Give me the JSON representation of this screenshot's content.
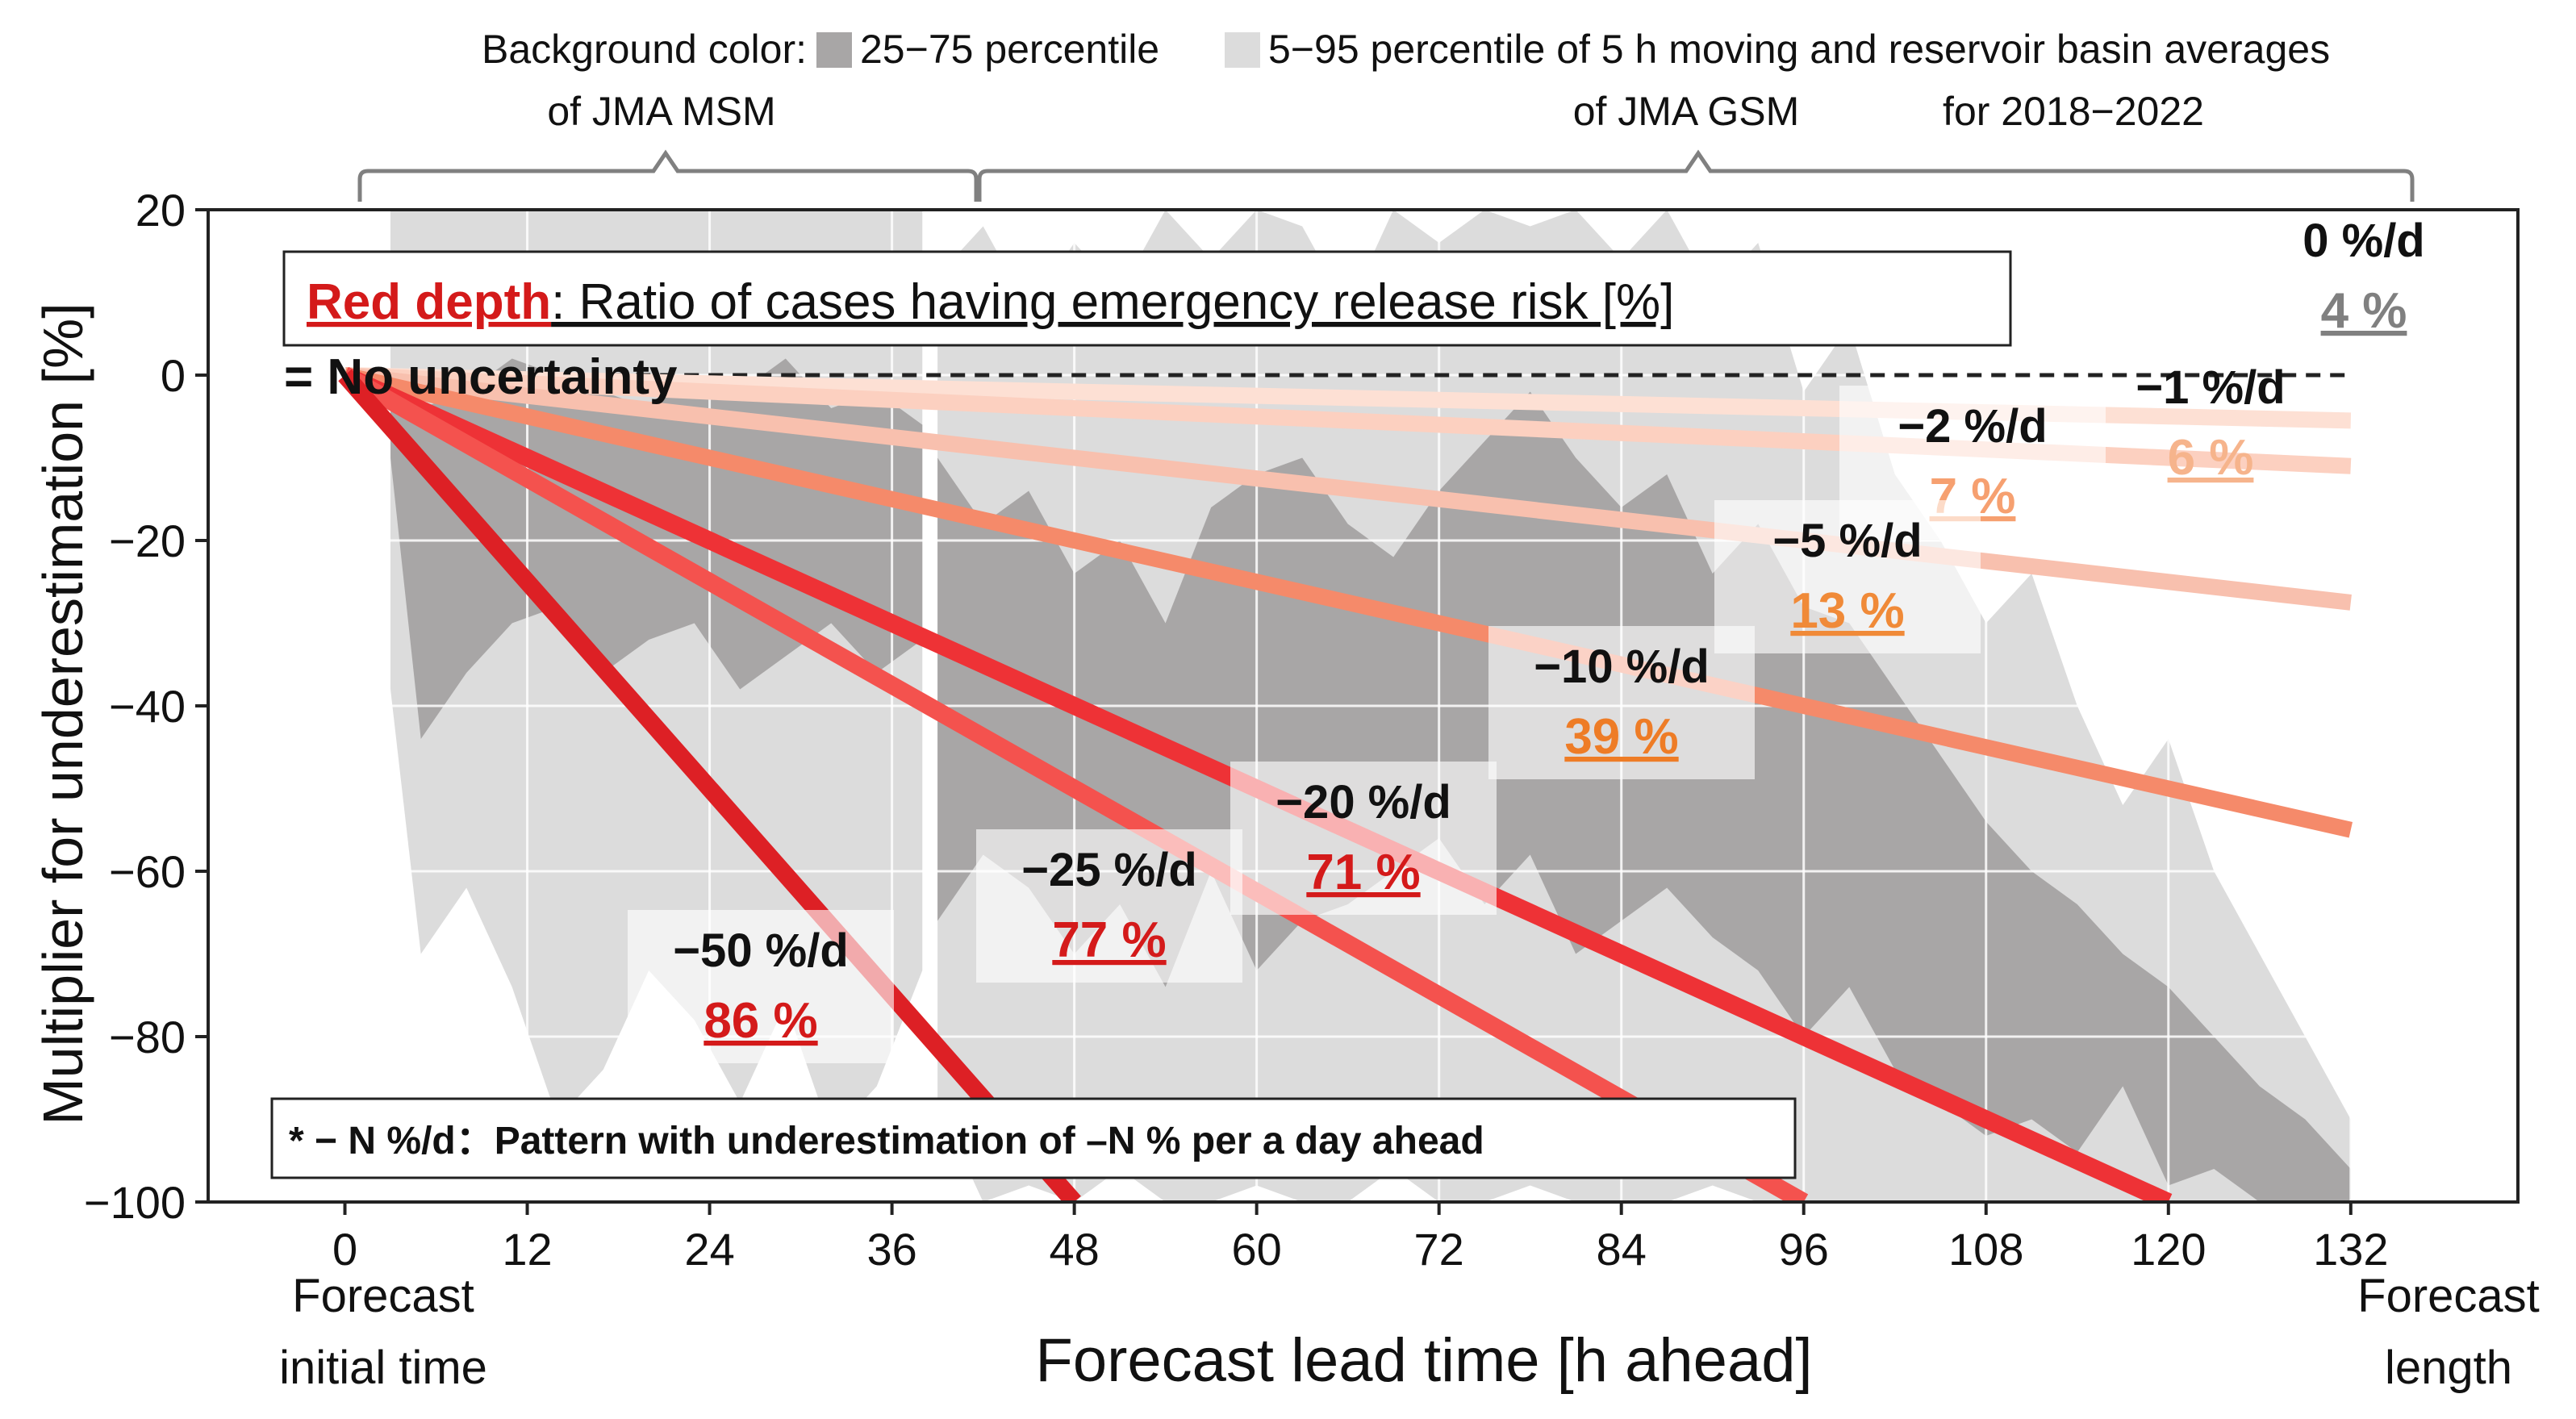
{
  "chart_data": {
    "type": "line",
    "title": "",
    "xlabel": "Forecast lead time [h ahead]",
    "ylabel": "Multiplier for underestimation  [%]",
    "xlim": [
      -9,
      143
    ],
    "ylim": [
      -100,
      20
    ],
    "x_ticks": [
      0,
      12,
      24,
      36,
      48,
      60,
      72,
      84,
      96,
      108,
      120,
      132
    ],
    "x_tick_labels": [
      "0",
      "12",
      "24",
      "36",
      "48",
      "60",
      "72",
      "84",
      "96",
      "108",
      "120",
      "132"
    ],
    "y_ticks": [
      20,
      0,
      -20,
      -40,
      -60,
      -80,
      -100
    ],
    "y_tick_labels": [
      "20",
      "0",
      "−20",
      "−40",
      "−60",
      "−80",
      "−100"
    ],
    "x_end_labels": {
      "start_line1": "Forecast",
      "start_line2": "initial time",
      "end_line1": "Forecast",
      "end_line2": "length"
    },
    "top_legend": {
      "line1_prefix": "Background color:",
      "dark_label": "25−75 percentile",
      "light_label": "5−95 percentile of 5 h moving and reservoir basin averages",
      "msm_label": "of JMA MSM",
      "gsm_label": "of JMA GSM",
      "period_label": "for 2018−2022"
    },
    "red_depth_box": {
      "title": "Red depth",
      "rest": ": Ratio of cases having emergency release risk [%]"
    },
    "no_uncertainty_label": "= No uncertainty",
    "footnote": "* − N %/d：Pattern with underestimation of –N % per a day ahead",
    "series": [
      {
        "name": "0 %/d",
        "rate_per_day": 0,
        "risk_label": "4 %",
        "color": "#222222",
        "label_color": "#808080",
        "x_start": 0,
        "x_end": 132
      },
      {
        "name": "−1 %/d",
        "rate_per_day": -1,
        "risk_label": "6 %",
        "color": "#fde0d4",
        "label_color": "#f6b48c",
        "x_start": 0,
        "x_end": 132
      },
      {
        "name": "−2 %/d",
        "rate_per_day": -2,
        "risk_label": "7 %",
        "color": "#fcd0c0",
        "label_color": "#f6a070",
        "x_start": 0,
        "x_end": 132
      },
      {
        "name": "−5 %/d",
        "rate_per_day": -5,
        "risk_label": "13 %",
        "color": "#f8c0ae",
        "label_color": "#f08a38",
        "x_start": 0,
        "x_end": 132
      },
      {
        "name": "−10 %/d",
        "rate_per_day": -10,
        "risk_label": "39 %",
        "color": "#f58a6a",
        "label_color": "#ee7c26",
        "x_start": 0,
        "x_end": 132
      },
      {
        "name": "−20 %/d",
        "rate_per_day": -20,
        "risk_label": "71 %",
        "color": "#ee3236",
        "label_color": "#d41a1a",
        "x_start": 0,
        "x_end": 120
      },
      {
        "name": "−25 %/d",
        "rate_per_day": -25,
        "risk_label": "77 %",
        "color": "#f4524e",
        "label_color": "#d41a1a",
        "x_start": 0,
        "x_end": 96
      },
      {
        "name": "−50 %/d",
        "rate_per_day": -50,
        "risk_label": "86 %",
        "color": "#dd2025",
        "label_color": "#d41a1a",
        "x_start": 0,
        "x_end": 48
      }
    ],
    "background": {
      "msm_x_range": [
        3,
        38
      ],
      "gsm_x_range": [
        39,
        132
      ],
      "msm": {
        "x": [
          3,
          5,
          8,
          11,
          14,
          17,
          20,
          23,
          26,
          29,
          32,
          35,
          38
        ],
        "p5": [
          -38,
          -70,
          -62,
          -74,
          -90,
          -84,
          -72,
          -78,
          -88,
          -76,
          -92,
          -86,
          -72
        ],
        "p25": [
          -10,
          -44,
          -36,
          -30,
          -28,
          -36,
          -32,
          -30,
          -38,
          -34,
          -30,
          -36,
          -32
        ],
        "p75": [
          0,
          -4,
          -2,
          2,
          0,
          -2,
          -4,
          0,
          -2,
          2,
          -4,
          -2,
          -6
        ],
        "p95": [
          20,
          20,
          20,
          20,
          20,
          20,
          20,
          20,
          20,
          20,
          20,
          20,
          20
        ]
      },
      "gsm": {
        "x": [
          39,
          42,
          45,
          48,
          51,
          54,
          57,
          60,
          63,
          66,
          69,
          72,
          75,
          78,
          81,
          84,
          87,
          90,
          93,
          96,
          99,
          102,
          105,
          108,
          111,
          114,
          117,
          120,
          123,
          126,
          129,
          132
        ],
        "p5": [
          -88,
          -100,
          -98,
          -100,
          -96,
          -100,
          -100,
          -98,
          -100,
          -100,
          -96,
          -100,
          -100,
          -98,
          -100,
          -100,
          -100,
          -98,
          -100,
          -100,
          -100,
          -100,
          -100,
          -100,
          -100,
          -100,
          -100,
          -100,
          -100,
          -100,
          -100,
          -100
        ],
        "p25": [
          -66,
          -58,
          -62,
          -70,
          -64,
          -74,
          -60,
          -72,
          -66,
          -64,
          -60,
          -56,
          -64,
          -58,
          -70,
          -66,
          -62,
          -68,
          -72,
          -80,
          -74,
          -84,
          -88,
          -92,
          -90,
          -94,
          -86,
          -98,
          -96,
          -100,
          -100,
          -100
        ],
        "p75": [
          -10,
          -18,
          -14,
          -24,
          -20,
          -30,
          -16,
          -12,
          -10,
          -18,
          -22,
          -14,
          -8,
          -2,
          -10,
          -16,
          -12,
          -24,
          -18,
          -28,
          -30,
          -38,
          -46,
          -54,
          -60,
          -64,
          -70,
          -74,
          -80,
          -86,
          -90,
          -96
        ],
        "p95": [
          12,
          18,
          8,
          16,
          10,
          20,
          14,
          20,
          18,
          8,
          20,
          16,
          20,
          18,
          20,
          14,
          20,
          10,
          16,
          -2,
          6,
          -12,
          -20,
          -30,
          -24,
          -40,
          -52,
          -44,
          -60,
          -70,
          -80,
          -90
        ]
      }
    }
  }
}
